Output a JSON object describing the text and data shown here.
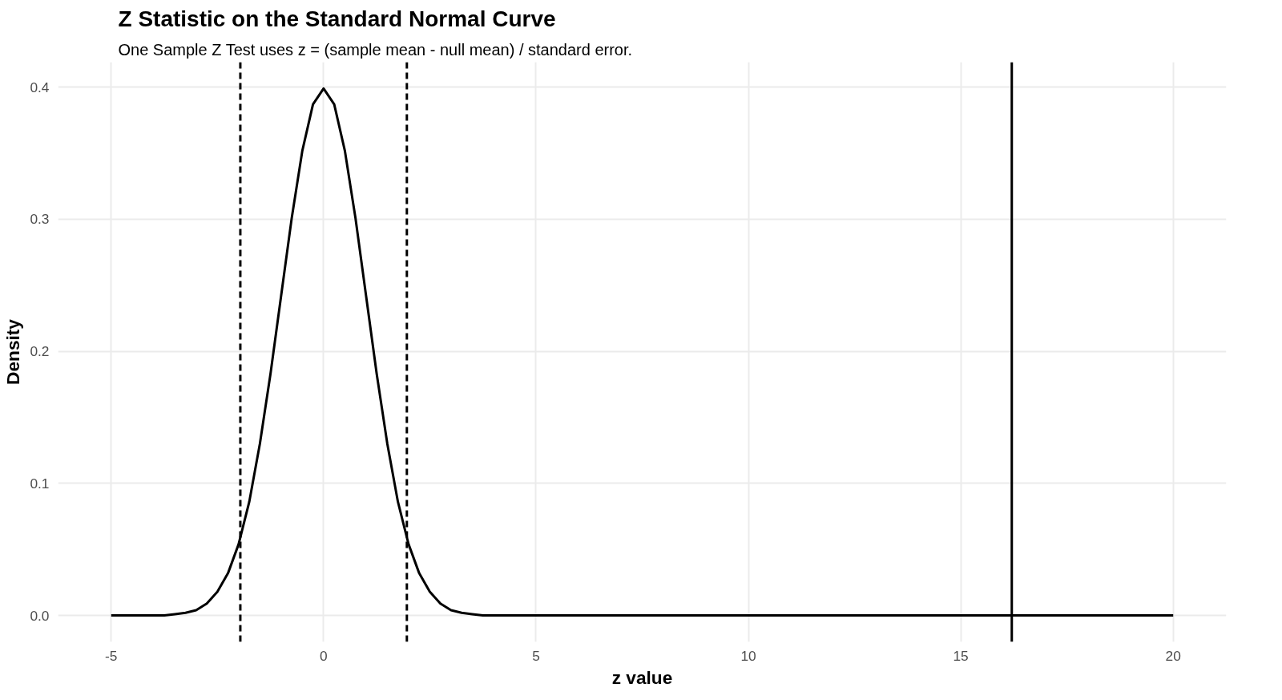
{
  "chart_data": {
    "type": "line",
    "title": "Z Statistic on the Standard Normal Curve",
    "subtitle": "One Sample Z Test uses z = (sample mean - null mean) / standard error.",
    "xlabel": "z value",
    "ylabel": "Density",
    "x": [
      -5,
      -4.5,
      -4,
      -3.75,
      -3.5,
      -3.25,
      -3,
      -2.75,
      -2.5,
      -2.25,
      -2,
      -1.75,
      -1.5,
      -1.25,
      -1,
      -0.75,
      -0.5,
      -0.25,
      0,
      0.25,
      0.5,
      0.75,
      1,
      1.25,
      1.5,
      1.75,
      2,
      2.25,
      2.5,
      2.75,
      3,
      3.25,
      3.5,
      3.75,
      4,
      4.5,
      5,
      6,
      8,
      10,
      12,
      14,
      16,
      18,
      20
    ],
    "series": [
      {
        "color": "#000000",
        "values": [
          0,
          0,
          0,
          0,
          0.001,
          0.002,
          0.004,
          0.009,
          0.018,
          0.032,
          0.054,
          0.086,
          0.13,
          0.183,
          0.242,
          0.301,
          0.352,
          0.387,
          0.399,
          0.387,
          0.352,
          0.301,
          0.242,
          0.183,
          0.13,
          0.086,
          0.054,
          0.032,
          0.018,
          0.009,
          0.004,
          0.002,
          0.001,
          0,
          0,
          0,
          0,
          0,
          0,
          0,
          0,
          0,
          0,
          0,
          0
        ]
      }
    ],
    "ref_lines": [
      {
        "axis": "x",
        "value": -1.96,
        "color": "#000000",
        "line_style": "dashed"
      },
      {
        "axis": "x",
        "value": 1.96,
        "color": "#000000",
        "line_style": "dashed"
      },
      {
        "axis": "x",
        "value": 16.2,
        "color": "#000000",
        "line_style": "solid"
      }
    ],
    "xlim": [
      -6.25,
      21.25
    ],
    "ylim": [
      -0.02,
      0.419
    ],
    "xticks": [
      -5,
      0,
      5,
      10,
      15,
      20
    ],
    "yticks": [
      {
        "value": 0,
        "label": "0.0"
      },
      {
        "value": 0.1,
        "label": "0.1"
      },
      {
        "value": 0.2,
        "label": "0.2"
      },
      {
        "value": 0.3,
        "label": "0.3"
      },
      {
        "value": 0.4,
        "label": "0.4"
      }
    ],
    "grid": true,
    "marker": "none",
    "line_style": "solid"
  }
}
